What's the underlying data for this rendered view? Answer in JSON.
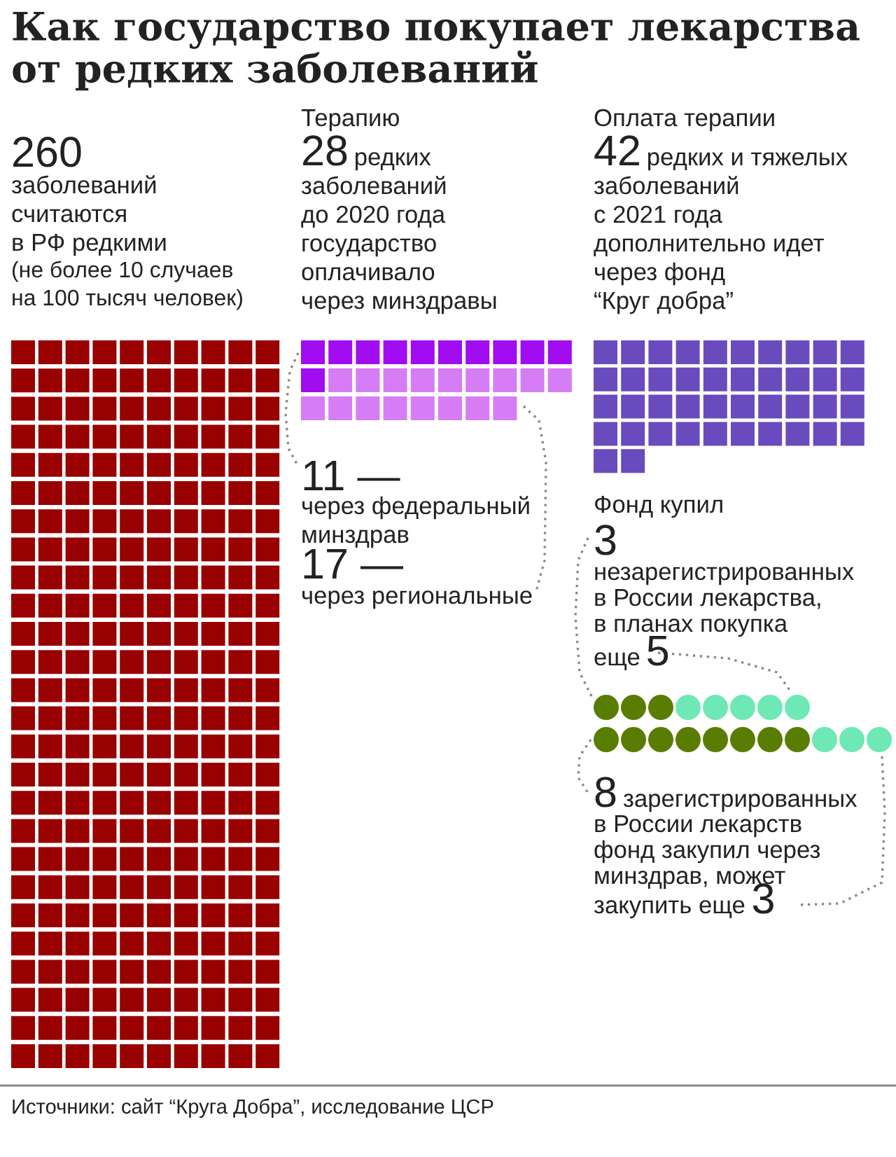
{
  "chart_data": [
    {
      "type": "other",
      "title": "Как государство покупает лекарства\nот редких заболеваний",
      "categories": [
        null
      ],
      "values": [
        260
      ],
      "colors": [
        "#990000"
      ],
      "value_labels": [
        "260"
      ],
      "annotations": [
        "заболеваний\nсчитаются\nв РФ редкими",
        "(не более 10 случаев\nна 100 тысяч человек)",
        "Источники: сайт “Круга Добра”, исследование ЦСР"
      ]
    },
    {
      "type": "other",
      "subtitle": "Терапию",
      "categories": [
        "через федеральный\nминздрав",
        "через региональные"
      ],
      "values": [
        11,
        17
      ],
      "colors": [
        "#a20cf0",
        "#d67cf5"
      ],
      "value_labels": [
        "11 —",
        "17 —"
      ],
      "annotations": [
        "28 редких\nзаболеваний\nдо 2020 года\nгосударство\nоплачивало\nчерез минздравы"
      ]
    },
    {
      "type": "other",
      "subtitle": "Оплата терапии",
      "categories": [
        null
      ],
      "values": [
        42
      ],
      "colors": [
        "#6a4bbd"
      ],
      "value_labels": [
        "42"
      ],
      "annotations": [
        "редких и тяжелых\nзаболеваний\nс 2021 года\nдополнительно идет\nчерез фонд\n“Круг добра”"
      ]
    },
    {
      "type": "other",
      "categories": [
        null,
        null,
        null,
        null
      ],
      "data_labels": true,
      "values": [
        3,
        5,
        8,
        3
      ],
      "colors": [
        "#587d00",
        "#6ee8b4",
        "#587d00",
        "#6ee8b4"
      ],
      "annotations": [
        "Фонд купил",
        "незарегистрированных\nв России лекарства,\nв планах покупка",
        "еще",
        "зарегистрированных\nв России лекарств\nфонд закупил через\nминздрав, может",
        "закупить еще"
      ]
    }
  ]
}
